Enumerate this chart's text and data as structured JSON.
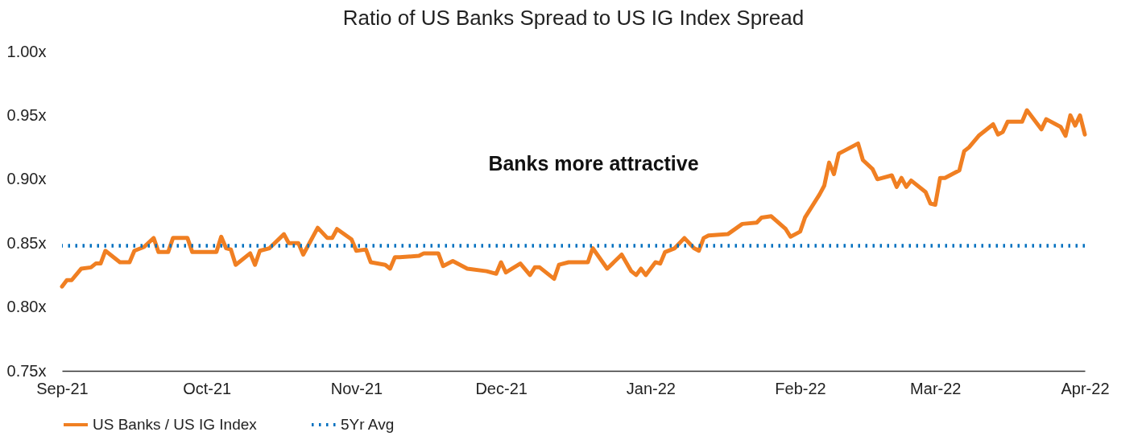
{
  "chart_data": {
    "type": "line",
    "title": "Ratio of US Banks Spread to US IG Index Spread",
    "annotations": [
      "Banks more attractive"
    ],
    "x": [
      "2021-09-01",
      "2021-09-02",
      "2021-09-03",
      "2021-09-05",
      "2021-09-07",
      "2021-09-08",
      "2021-09-09",
      "2021-09-10",
      "2021-09-13",
      "2021-09-14",
      "2021-09-15",
      "2021-09-16",
      "2021-09-18",
      "2021-09-20",
      "2021-09-21",
      "2021-09-23",
      "2021-09-24",
      "2021-09-27",
      "2021-09-28",
      "2021-10-03",
      "2021-10-04",
      "2021-10-05",
      "2021-10-06",
      "2021-10-07",
      "2021-10-10",
      "2021-10-11",
      "2021-10-12",
      "2021-10-14",
      "2021-10-17",
      "2021-10-18",
      "2021-10-20",
      "2021-10-21",
      "2021-10-24",
      "2021-10-26",
      "2021-10-27",
      "2021-10-28",
      "2021-10-31",
      "2021-11-01",
      "2021-11-03",
      "2021-11-04",
      "2021-11-07",
      "2021-11-08",
      "2021-11-09",
      "2021-11-10",
      "2021-11-14",
      "2021-11-15",
      "2021-11-18",
      "2021-11-19",
      "2021-11-21",
      "2021-11-24",
      "2021-11-28",
      "2021-11-30",
      "2021-12-01",
      "2021-12-02",
      "2021-12-05",
      "2021-12-07",
      "2021-12-08",
      "2021-12-09",
      "2021-12-12",
      "2021-12-13",
      "2021-12-15",
      "2021-12-19",
      "2021-12-20",
      "2021-12-23",
      "2021-12-26",
      "2021-12-28",
      "2021-12-29",
      "2021-12-30",
      "2021-12-31",
      "2022-01-02",
      "2022-01-03",
      "2022-01-04",
      "2022-01-06",
      "2022-01-08",
      "2022-01-10",
      "2022-01-11",
      "2022-01-12",
      "2022-01-13",
      "2022-01-17",
      "2022-01-20",
      "2022-01-23",
      "2022-01-24",
      "2022-01-26",
      "2022-01-29",
      "2022-01-30",
      "2022-01-31",
      "2022-02-01",
      "2022-02-02",
      "2022-02-05",
      "2022-02-06",
      "2022-02-07",
      "2022-02-08",
      "2022-02-09",
      "2022-02-10",
      "2022-02-13",
      "2022-02-14",
      "2022-02-16",
      "2022-02-17",
      "2022-02-20",
      "2022-02-21",
      "2022-02-22",
      "2022-02-23",
      "2022-02-24",
      "2022-02-27",
      "2022-02-28",
      "2022-03-01",
      "2022-03-02",
      "2022-03-03",
      "2022-03-06",
      "2022-03-07",
      "2022-03-08",
      "2022-03-10",
      "2022-03-13",
      "2022-03-14",
      "2022-03-15",
      "2022-03-16",
      "2022-03-19",
      "2022-03-20",
      "2022-03-23",
      "2022-03-24",
      "2022-03-27",
      "2022-03-28",
      "2022-03-29",
      "2022-03-30",
      "2022-03-31",
      "2022-04-01"
    ],
    "series": [
      {
        "name": "US Banks / US IG Index",
        "color": "#f07f22",
        "values": [
          0.816,
          0.821,
          0.821,
          0.83,
          0.831,
          0.834,
          0.834,
          0.844,
          0.835,
          0.835,
          0.835,
          0.844,
          0.847,
          0.854,
          0.843,
          0.843,
          0.854,
          0.854,
          0.843,
          0.843,
          0.855,
          0.846,
          0.845,
          0.833,
          0.842,
          0.833,
          0.844,
          0.846,
          0.857,
          0.85,
          0.85,
          0.841,
          0.862,
          0.854,
          0.854,
          0.861,
          0.853,
          0.844,
          0.845,
          0.835,
          0.833,
          0.83,
          0.839,
          0.839,
          0.84,
          0.842,
          0.842,
          0.832,
          0.836,
          0.83,
          0.828,
          0.826,
          0.835,
          0.827,
          0.834,
          0.825,
          0.831,
          0.831,
          0.822,
          0.833,
          0.835,
          0.835,
          0.846,
          0.83,
          0.841,
          0.828,
          0.825,
          0.83,
          0.825,
          0.835,
          0.834,
          0.843,
          0.846,
          0.854,
          0.846,
          0.844,
          0.854,
          0.856,
          0.857,
          0.865,
          0.866,
          0.87,
          0.871,
          0.861,
          0.855,
          0.857,
          0.859,
          0.87,
          0.888,
          0.895,
          0.913,
          0.904,
          0.92,
          0.922,
          0.928,
          0.915,
          0.908,
          0.9,
          0.903,
          0.894,
          0.901,
          0.894,
          0.899,
          0.89,
          0.881,
          0.88,
          0.901,
          0.901,
          0.907,
          0.922,
          0.925,
          0.934,
          0.943,
          0.935,
          0.937,
          0.945,
          0.945,
          0.954,
          0.939,
          0.947,
          0.941,
          0.934,
          0.95,
          0.942,
          0.95,
          0.935
        ]
      }
    ],
    "ref_lines": [
      {
        "axis": "y",
        "value": 0.848,
        "label": "5Yr Avg",
        "color": "#0070c0",
        "line_style": "dotted"
      }
    ],
    "xlim": [
      "2021-09-01",
      "2022-04-01"
    ],
    "xticks": [
      {
        "value": "2021-09-01",
        "label": "Sep-21"
      },
      {
        "value": "2021-10-01",
        "label": "Oct-21"
      },
      {
        "value": "2021-11-01",
        "label": "Nov-21"
      },
      {
        "value": "2021-12-01",
        "label": "Dec-21"
      },
      {
        "value": "2022-01-01",
        "label": "Jan-22"
      },
      {
        "value": "2022-02-01",
        "label": "Feb-22"
      },
      {
        "value": "2022-03-01",
        "label": "Mar-22"
      },
      {
        "value": "2022-04-01",
        "label": "Apr-22"
      }
    ],
    "ylim": [
      0.75,
      1.0
    ],
    "yticks": [
      {
        "value": 0.75,
        "label": "0.75x"
      },
      {
        "value": 0.8,
        "label": "0.80x"
      },
      {
        "value": 0.85,
        "label": "0.85x"
      },
      {
        "value": 0.9,
        "label": "0.90x"
      },
      {
        "value": 0.95,
        "label": "0.95x"
      },
      {
        "value": 1.0,
        "label": "1.00x"
      }
    ],
    "grid": false,
    "legend": "bottom",
    "marker": "none",
    "line_style": "solid"
  }
}
